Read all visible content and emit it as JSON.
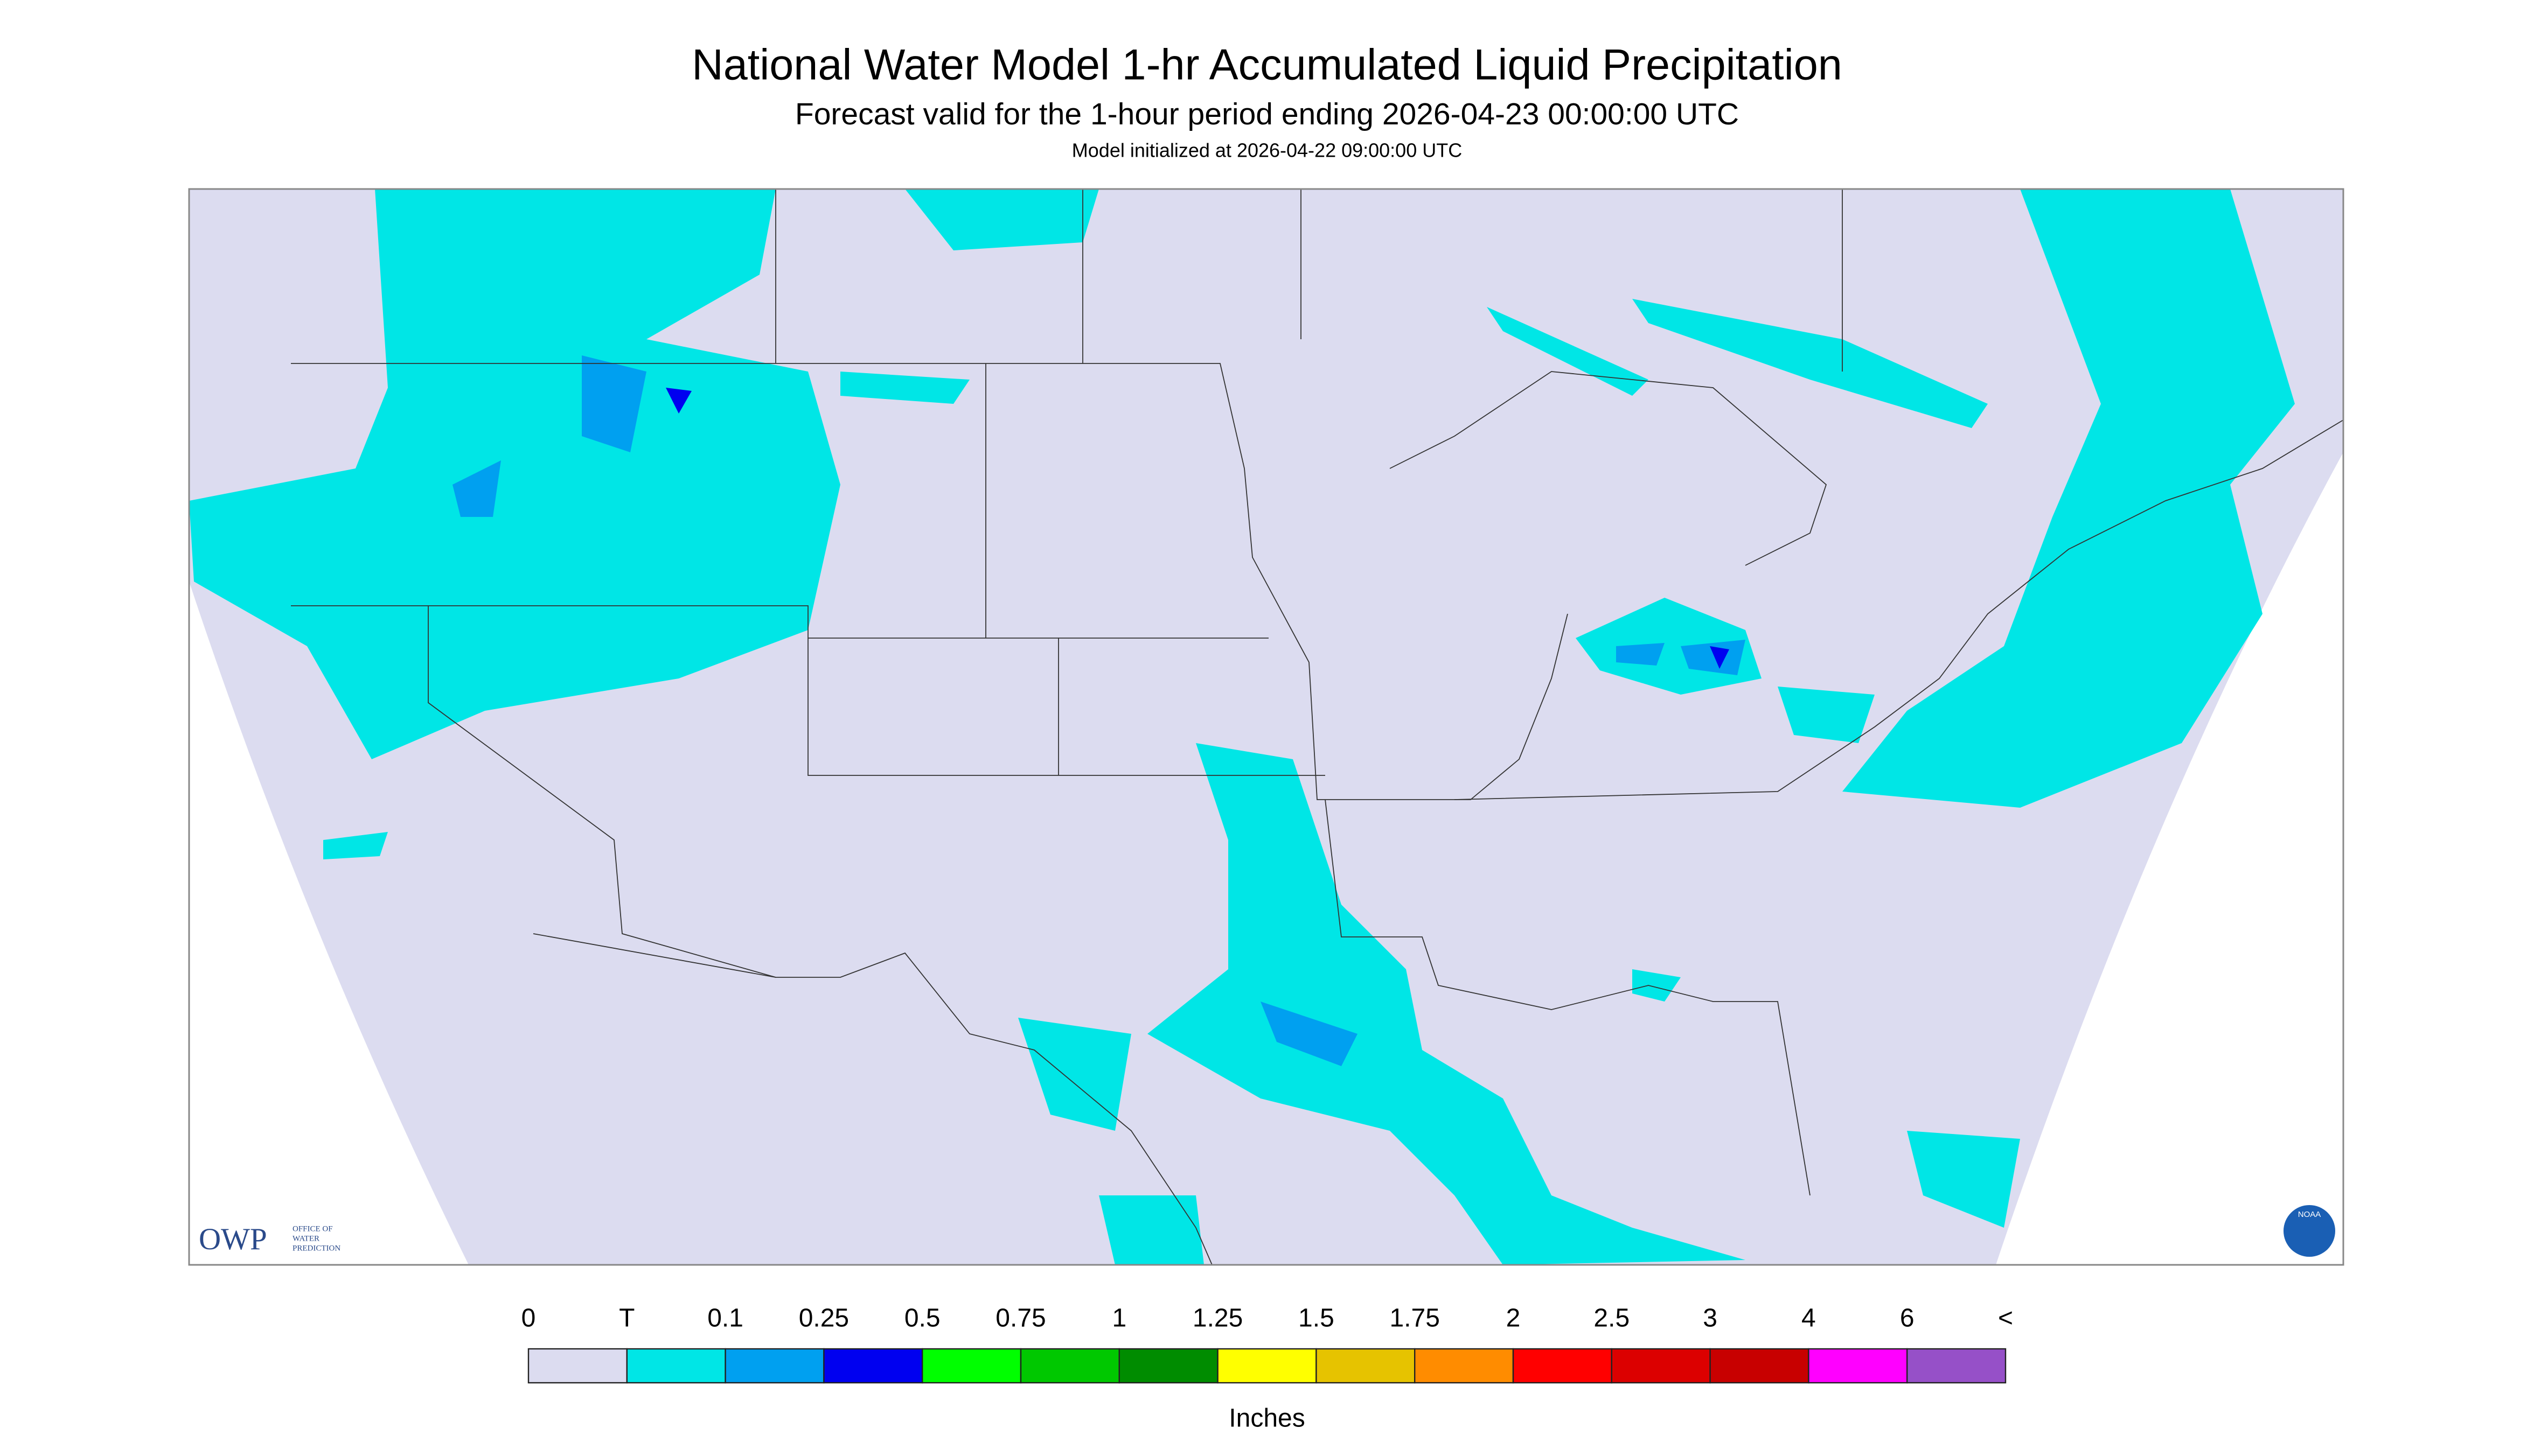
{
  "header": {
    "title": "National Water Model 1-hr Accumulated Liquid Precipitation",
    "subtitle": "Forecast valid for the 1-hour period ending 2026-04-23 00:00:00 UTC",
    "init": "Model initialized at 2026-04-22 09:00:00 UTC"
  },
  "logos": {
    "owp": "OWP",
    "owp_text": [
      "OFFICE OF",
      "WATER",
      "PREDICTION"
    ],
    "noaa": "NOAA"
  },
  "legend": {
    "labels": [
      "0",
      "T",
      "0.1",
      "0.25",
      "0.5",
      "0.75",
      "1",
      "1.25",
      "1.5",
      "1.75",
      "2",
      "2.5",
      "3",
      "4",
      "6",
      "<"
    ],
    "colors": [
      "#dcdcf0",
      "#00e6e6",
      "#00a0f0",
      "#0000f0",
      "#00ff00",
      "#00c800",
      "#008c00",
      "#ffff00",
      "#e6c300",
      "#ff8c00",
      "#ff0000",
      "#dc0000",
      "#c80000",
      "#ff00ff",
      "#9650c8"
    ],
    "units": "Inches"
  }
}
